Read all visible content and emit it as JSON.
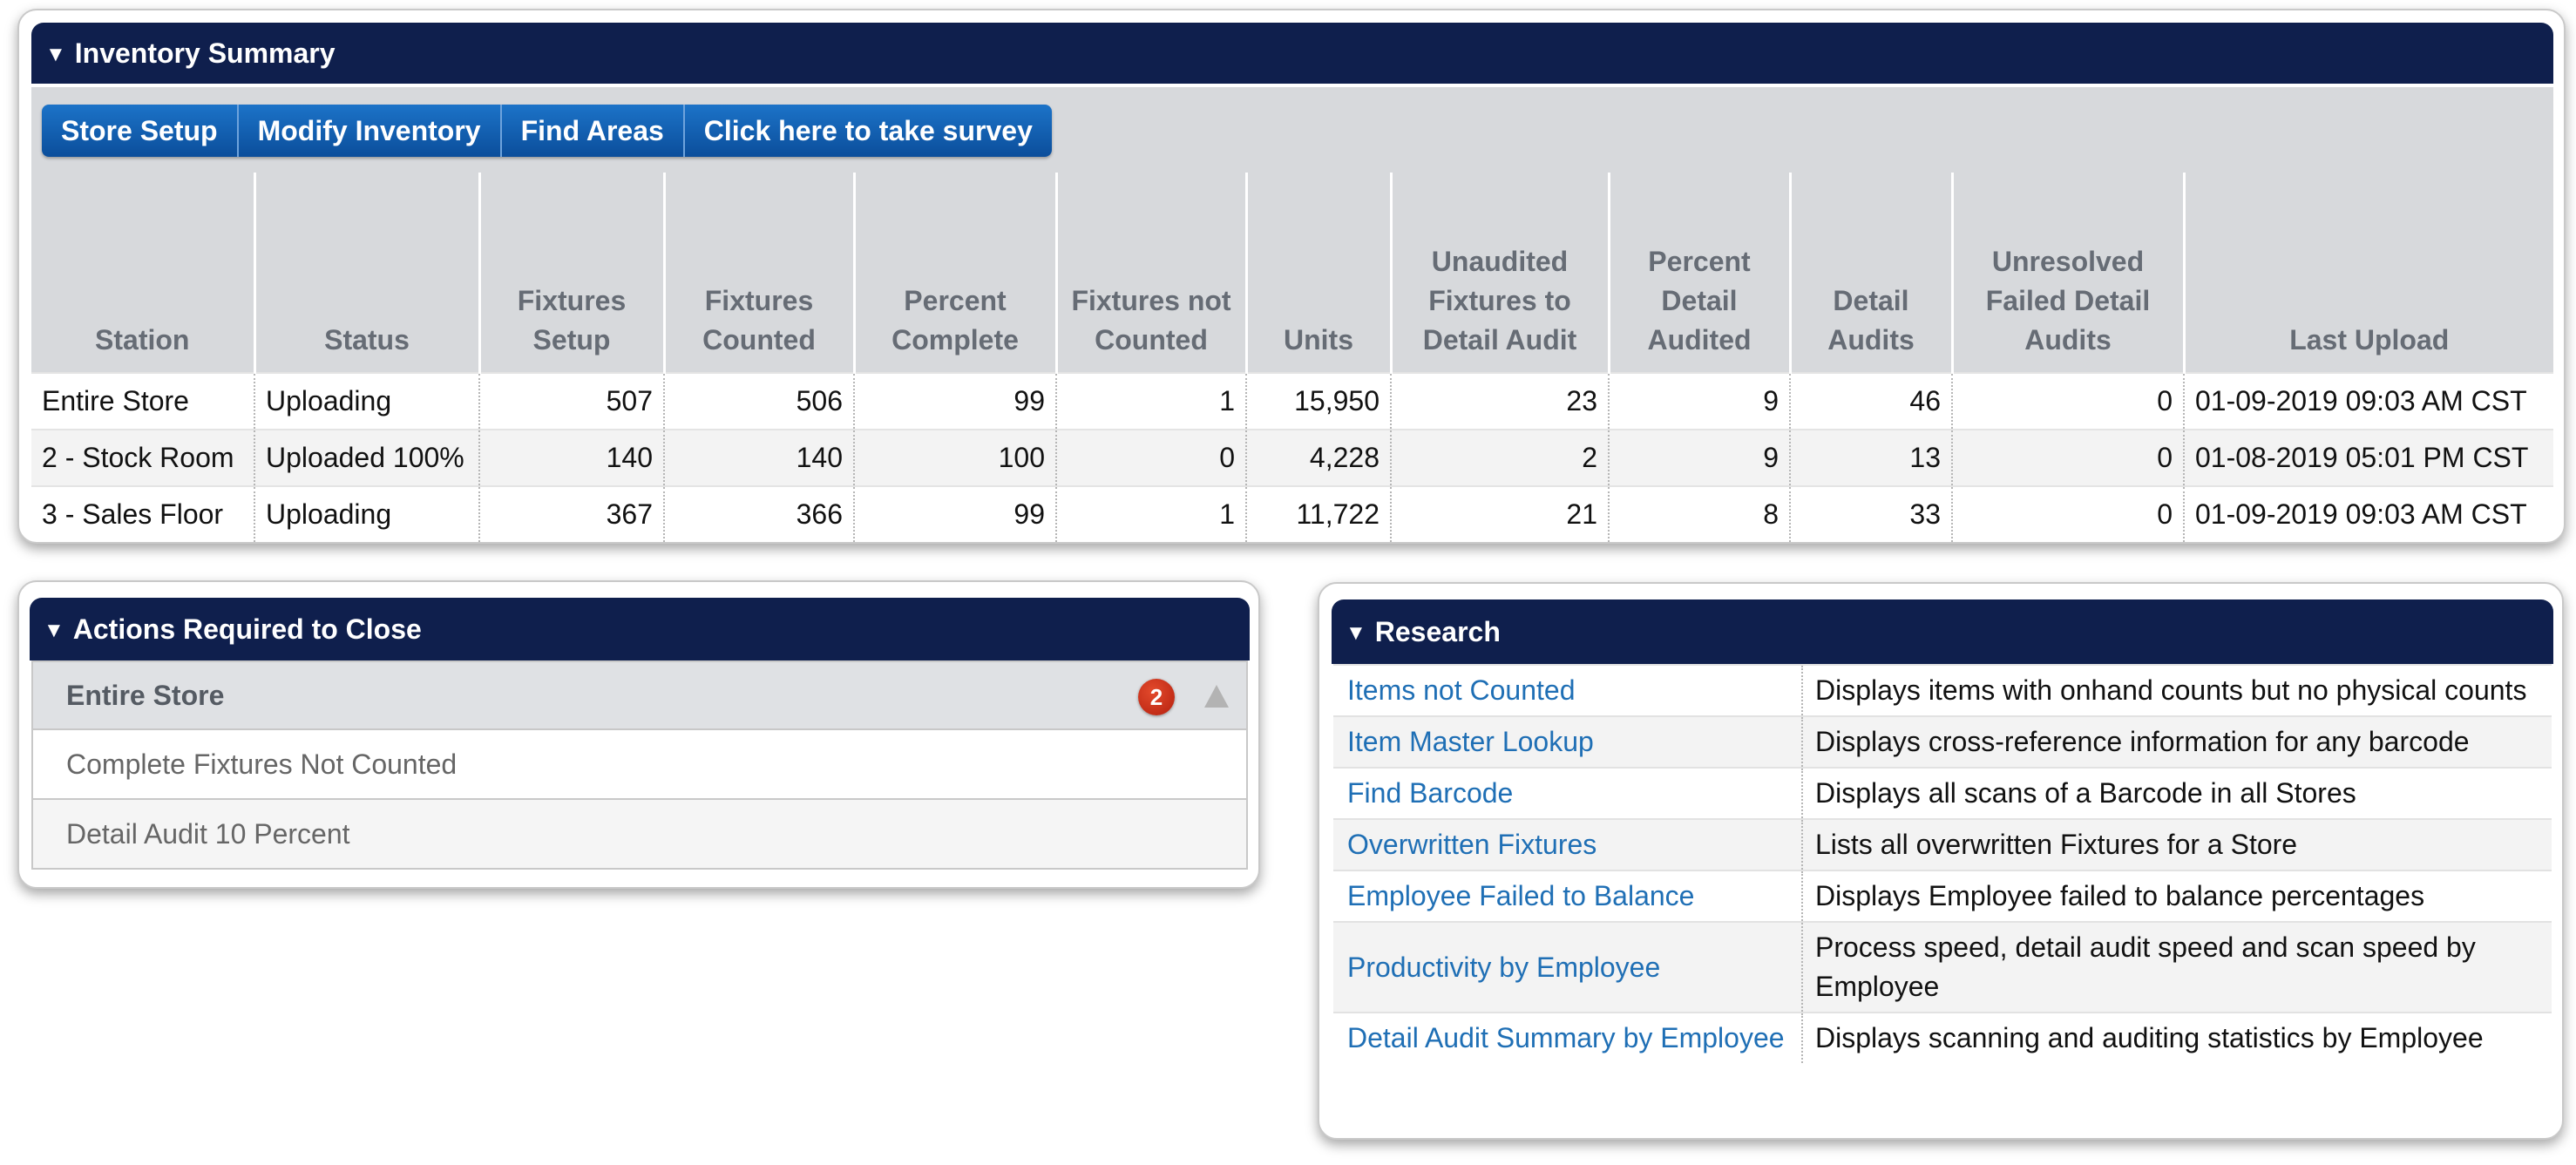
{
  "inventory_summary": {
    "title": "Inventory Summary",
    "buttons": [
      "Store Setup",
      "Modify Inventory",
      "Find Areas",
      "Click here to take survey"
    ],
    "columns": [
      "Station",
      "Status",
      "Fixtures Setup",
      "Fixtures Counted",
      "Percent Complete",
      "Fixtures not Counted",
      "Units",
      "Unaudited Fixtures to Detail Audit",
      "Percent Detail Audited",
      "Detail Audits",
      "Unresolved Failed Detail Audits",
      "Last Upload"
    ],
    "rows": [
      {
        "station": "Entire Store",
        "status": "Uploading",
        "fixtures_setup": "507",
        "fixtures_counted": "506",
        "percent_complete": "99",
        "fixtures_not_counted": "1",
        "units": "15,950",
        "unaudited": "23",
        "percent_detail_audited": "9",
        "detail_audits": "46",
        "unresolved": "0",
        "last_upload": "01-09-2019 09:03 AM CST"
      },
      {
        "station": "2 - Stock Room",
        "status": "Uploaded 100%",
        "fixtures_setup": "140",
        "fixtures_counted": "140",
        "percent_complete": "100",
        "fixtures_not_counted": "0",
        "units": "4,228",
        "unaudited": "2",
        "percent_detail_audited": "9",
        "detail_audits": "13",
        "unresolved": "0",
        "last_upload": "01-08-2019 05:01 PM CST"
      },
      {
        "station": "3 - Sales Floor",
        "status": "Uploading",
        "fixtures_setup": "367",
        "fixtures_counted": "366",
        "percent_complete": "99",
        "fixtures_not_counted": "1",
        "units": "11,722",
        "unaudited": "21",
        "percent_detail_audited": "8",
        "detail_audits": "33",
        "unresolved": "0",
        "last_upload": "01-09-2019 09:03 AM CST"
      }
    ]
  },
  "actions": {
    "title": "Actions Required to Close",
    "group_label": "Entire Store",
    "badge_count": "2",
    "items": [
      "Complete Fixtures Not Counted",
      "Detail Audit 10 Percent"
    ]
  },
  "research": {
    "title": "Research",
    "rows": [
      {
        "link": "Items not Counted",
        "desc": "Displays items with onhand counts but no physical counts"
      },
      {
        "link": "Item Master Lookup",
        "desc": "Displays cross-reference information for any barcode"
      },
      {
        "link": "Find Barcode",
        "desc": "Displays all scans of a Barcode in all Stores"
      },
      {
        "link": "Overwritten Fixtures",
        "desc": "Lists all overwritten Fixtures for a Store"
      },
      {
        "link": "Employee Failed to Balance",
        "desc": "Displays Employee failed to balance percentages"
      },
      {
        "link": "Productivity by Employee",
        "desc": "Process speed, detail audit speed and scan speed by Employee"
      },
      {
        "link": "Detail Audit Summary by Employee",
        "desc": "Displays scanning and auditing statistics by Employee"
      }
    ]
  },
  "colors": {
    "header_bg": "#0f1f4d",
    "link": "#1f6fb5",
    "alert_red": "#c0221b",
    "button_blue": "#0b4e9b"
  }
}
